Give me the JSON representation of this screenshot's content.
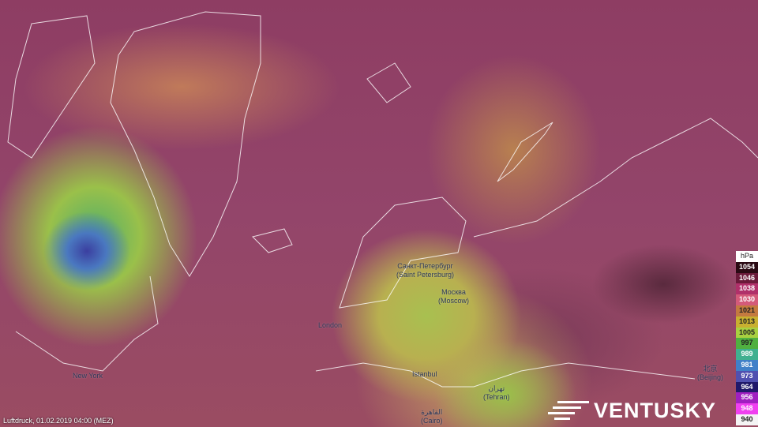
{
  "layer_caption": "Luftdruck, 01.02.2019 04:00 (MEZ)",
  "brand": "VENTUSKY",
  "legend": {
    "unit": "hPa",
    "items": [
      {
        "v": "1054",
        "c": "#2a0a14",
        "t": "#fff"
      },
      {
        "v": "1046",
        "c": "#6a1a3a",
        "t": "#fff"
      },
      {
        "v": "1038",
        "c": "#b0306a",
        "t": "#fff"
      },
      {
        "v": "1030",
        "c": "#d45a7a",
        "t": "#fff"
      },
      {
        "v": "1021",
        "c": "#c47a40",
        "t": "#222"
      },
      {
        "v": "1013",
        "c": "#c8b030",
        "t": "#222"
      },
      {
        "v": "1005",
        "c": "#a8d040",
        "t": "#222"
      },
      {
        "v": "997",
        "c": "#50b040",
        "t": "#222"
      },
      {
        "v": "989",
        "c": "#40b090",
        "t": "#fff"
      },
      {
        "v": "981",
        "c": "#4080c8",
        "t": "#fff"
      },
      {
        "v": "973",
        "c": "#5050b0",
        "t": "#fff"
      },
      {
        "v": "964",
        "c": "#20186a",
        "t": "#fff"
      },
      {
        "v": "956",
        "c": "#a020c0",
        "t": "#fff"
      },
      {
        "v": "948",
        "c": "#f040f0",
        "t": "#fff"
      },
      {
        "v": "940",
        "c": "#f4f4f4",
        "t": "#222"
      }
    ]
  },
  "cities": {
    "spb": [
      "Санкт-Петербург",
      "(Saint Petersburg)"
    ],
    "moscow": [
      "Москва",
      "(Moscow)"
    ],
    "london": "London",
    "istanbul": "Istanbul",
    "newyork": "New York",
    "tehran": [
      "تهران",
      "(Tehran)"
    ],
    "cairo": [
      "القاهرة",
      "(Cairo)"
    ],
    "beijing": [
      "北京",
      "(Beijing)"
    ]
  }
}
